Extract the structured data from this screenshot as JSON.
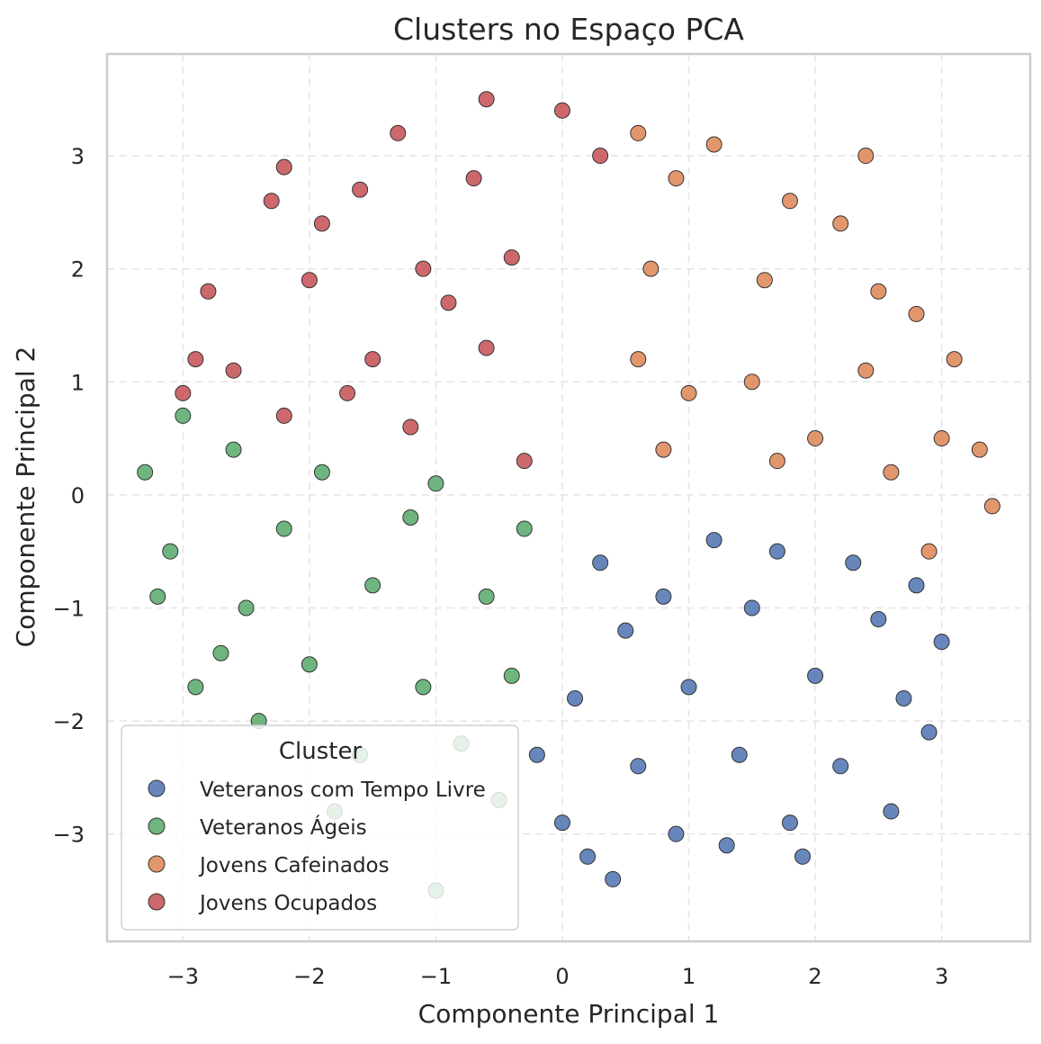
{
  "chart_data": {
    "type": "scatter",
    "title": "Clusters no Espaço PCA",
    "xlabel": "Componente Principal 1",
    "ylabel": "Componente Principal 2",
    "xlim": [
      -3.6,
      3.7
    ],
    "ylim": [
      -3.95,
      3.9
    ],
    "xticks": [
      -3,
      -2,
      -1,
      0,
      1,
      2,
      3
    ],
    "yticks": [
      -3,
      -2,
      -1,
      0,
      1,
      2,
      3
    ],
    "xtick_labels": [
      "−3",
      "−2",
      "−1",
      "0",
      "1",
      "2",
      "3"
    ],
    "ytick_labels": [
      "−3",
      "−2",
      "−1",
      "0",
      "1",
      "2",
      "3"
    ],
    "grid": true,
    "legend": {
      "title": "Cluster",
      "placement": "lower-left"
    },
    "series": [
      {
        "name": "Veteranos com Tempo Livre",
        "color": "#4c72b0",
        "points": [
          [
            0.3,
            -0.6
          ],
          [
            1.2,
            -0.4
          ],
          [
            2.3,
            -0.6
          ],
          [
            0.5,
            -1.2
          ],
          [
            1.5,
            -1.0
          ],
          [
            2.5,
            -1.1
          ],
          [
            0.1,
            -1.8
          ],
          [
            1.0,
            -1.7
          ],
          [
            2.0,
            -1.6
          ],
          [
            2.7,
            -1.8
          ],
          [
            -0.2,
            -2.3
          ],
          [
            0.6,
            -2.4
          ],
          [
            1.4,
            -2.3
          ],
          [
            2.2,
            -2.4
          ],
          [
            0.0,
            -2.9
          ],
          [
            0.9,
            -3.0
          ],
          [
            1.8,
            -2.9
          ],
          [
            0.4,
            -3.4
          ],
          [
            1.3,
            -3.1
          ],
          [
            2.9,
            -2.1
          ],
          [
            2.6,
            -2.8
          ],
          [
            3.0,
            -1.3
          ],
          [
            0.2,
            -3.2
          ],
          [
            1.9,
            -3.2
          ],
          [
            2.8,
            -0.8
          ],
          [
            0.8,
            -0.9
          ],
          [
            1.7,
            -0.5
          ]
        ]
      },
      {
        "name": "Veteranos Ágeis",
        "color": "#55a868",
        "points": [
          [
            -0.3,
            -0.3
          ],
          [
            -1.2,
            -0.2
          ],
          [
            -2.2,
            -0.3
          ],
          [
            -0.6,
            -0.9
          ],
          [
            -1.5,
            -0.8
          ],
          [
            -2.5,
            -1.0
          ],
          [
            -0.4,
            -1.6
          ],
          [
            -1.1,
            -1.7
          ],
          [
            -2.0,
            -1.5
          ],
          [
            -2.7,
            -1.4
          ],
          [
            -0.8,
            -2.2
          ],
          [
            -1.6,
            -2.3
          ],
          [
            -3.1,
            -0.5
          ],
          [
            -3.3,
            0.2
          ],
          [
            -3.0,
            0.7
          ],
          [
            -2.9,
            -1.7
          ],
          [
            -3.2,
            -0.9
          ],
          [
            -1.0,
            -3.5
          ],
          [
            -1.8,
            -2.8
          ],
          [
            -0.5,
            -2.7
          ],
          [
            -2.6,
            0.4
          ],
          [
            -1.9,
            0.2
          ],
          [
            -1.0,
            0.1
          ],
          [
            -2.4,
            -2.0
          ]
        ]
      },
      {
        "name": "Jovens Cafeinados",
        "color": "#dd8452",
        "points": [
          [
            0.8,
            0.4
          ],
          [
            1.7,
            0.3
          ],
          [
            2.6,
            0.2
          ],
          [
            0.6,
            1.2
          ],
          [
            1.5,
            1.0
          ],
          [
            2.4,
            1.1
          ],
          [
            3.0,
            0.5
          ],
          [
            0.7,
            2.0
          ],
          [
            1.6,
            1.9
          ],
          [
            2.5,
            1.8
          ],
          [
            0.9,
            2.8
          ],
          [
            1.8,
            2.6
          ],
          [
            2.4,
            3.0
          ],
          [
            3.3,
            0.4
          ],
          [
            3.4,
            -0.1
          ],
          [
            3.1,
            1.2
          ],
          [
            2.9,
            -0.5
          ],
          [
            1.2,
            3.1
          ],
          [
            0.6,
            3.2
          ],
          [
            2.2,
            2.4
          ],
          [
            2.8,
            1.6
          ],
          [
            1.0,
            0.9
          ],
          [
            2.0,
            0.5
          ]
        ]
      },
      {
        "name": "Jovens Ocupados",
        "color": "#c44e52",
        "points": [
          [
            -0.3,
            0.3
          ],
          [
            -1.2,
            0.6
          ],
          [
            -2.2,
            0.7
          ],
          [
            -0.6,
            1.3
          ],
          [
            -1.5,
            1.2
          ],
          [
            -2.6,
            1.1
          ],
          [
            -0.4,
            2.1
          ],
          [
            -1.1,
            2.0
          ],
          [
            -2.0,
            1.9
          ],
          [
            -2.8,
            1.8
          ],
          [
            -0.7,
            2.8
          ],
          [
            -1.6,
            2.7
          ],
          [
            -2.3,
            2.6
          ],
          [
            -0.6,
            3.5
          ],
          [
            0.0,
            3.4
          ],
          [
            -1.3,
            3.2
          ],
          [
            -2.2,
            2.9
          ],
          [
            -3.0,
            0.9
          ],
          [
            -2.9,
            1.2
          ],
          [
            0.3,
            3.0
          ],
          [
            -1.9,
            2.4
          ],
          [
            -0.9,
            1.7
          ],
          [
            -1.7,
            0.9
          ]
        ]
      }
    ]
  }
}
